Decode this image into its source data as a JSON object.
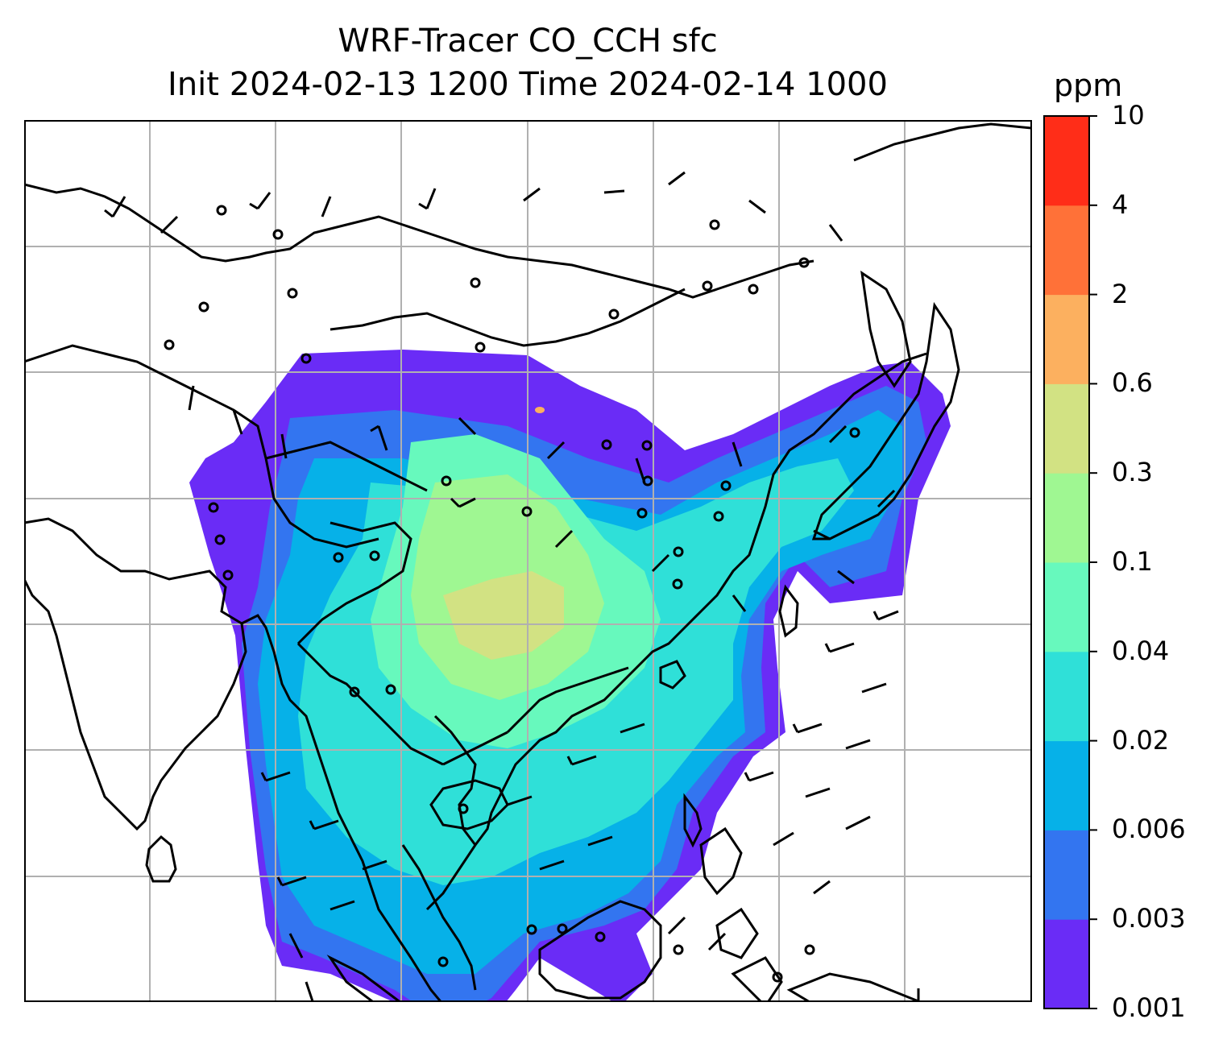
{
  "title": {
    "line1": "WRF-Tracer CO_CCH sfc",
    "line2": "Init 2024-02-13 1200 Time 2024-02-14 1000"
  },
  "colorbar": {
    "unit": "ppm",
    "levels": [
      "0.001",
      "0.003",
      "0.006",
      "0.02",
      "0.04",
      "0.1",
      "0.3",
      "0.6",
      "2",
      "4",
      "10"
    ],
    "colors": [
      "#6a2cf6",
      "#3375f0",
      "#06b1e8",
      "#2fe0d8",
      "#67f9bd",
      "#9ff792",
      "#d2e283",
      "#fcb05f",
      "#ff7138",
      "#ff2d18"
    ]
  },
  "map": {
    "region": "South and Southeast Asia",
    "gridlines": true,
    "layers": [
      "coastlines",
      "country-borders",
      "tracer-concentration-fill",
      "wind-barbs"
    ]
  }
}
